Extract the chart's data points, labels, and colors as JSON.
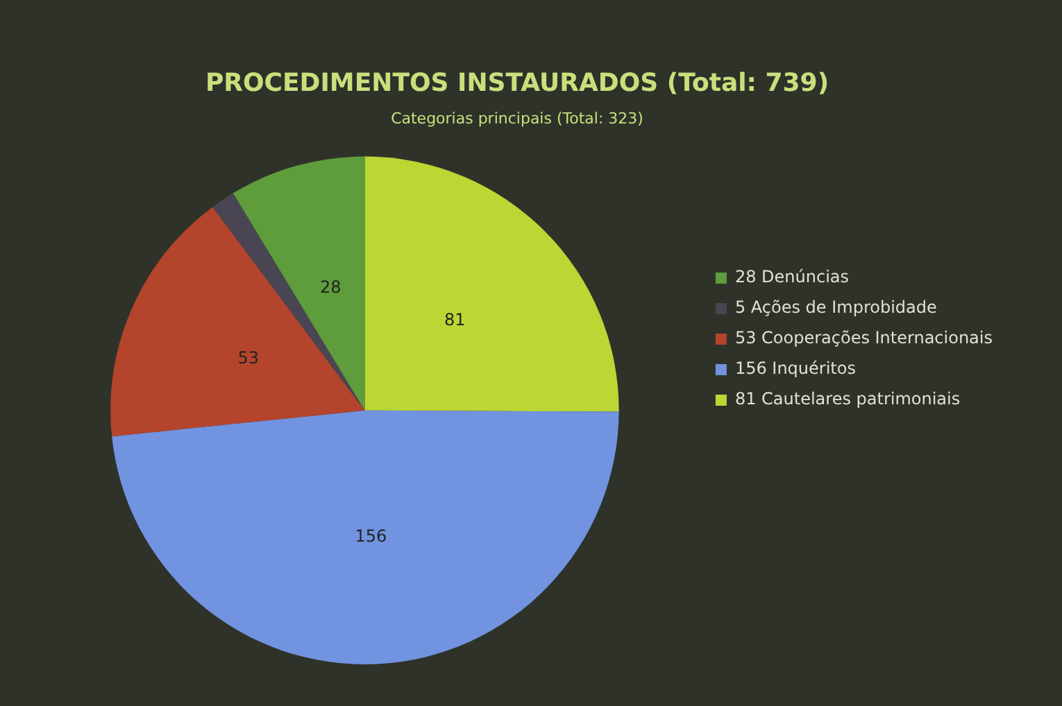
{
  "chart_data": {
    "type": "pie",
    "title": "PROCEDIMENTOS INSTAURADOS (Total: 739)",
    "subtitle": "Categorias principais (Total: 323)",
    "categories": [
      "28 Denúncias",
      "5 Ações de Improbidade",
      "53 Cooperações Internacionais",
      "156 Inquéritos",
      "81 Cautelares patrimoniais"
    ],
    "values": [
      28,
      5,
      53,
      156,
      81
    ],
    "colors": [
      "#5e9c3c",
      "#4a4552",
      "#b4452c",
      "#7193e0",
      "#bcd634"
    ],
    "value_labels": [
      "28",
      null,
      "53",
      "156",
      "81"
    ],
    "legend": "right"
  }
}
